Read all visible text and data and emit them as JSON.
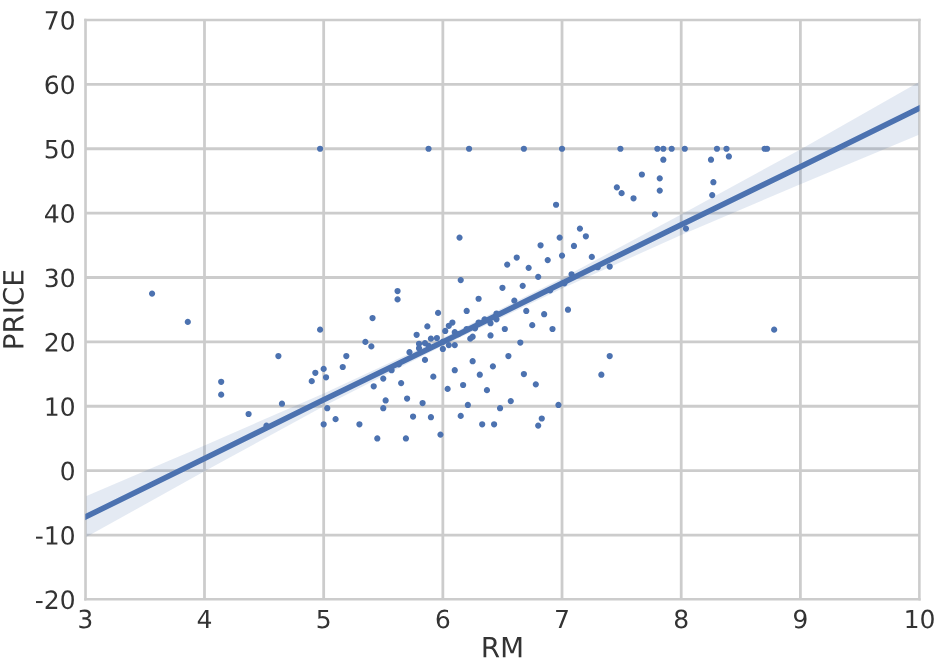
{
  "chart_data": {
    "type": "scatter",
    "xlabel": "RM",
    "ylabel": "PRICE",
    "xlim": [
      3,
      10
    ],
    "ylim": [
      -20,
      70
    ],
    "xticks": [
      3,
      4,
      5,
      6,
      7,
      8,
      9,
      10
    ],
    "yticks": [
      -20,
      -10,
      0,
      10,
      20,
      30,
      40,
      50,
      60,
      70
    ],
    "grid": true,
    "series": [
      {
        "type": "scatter",
        "color": "#4c72b0",
        "marker": "circle",
        "x": [
          3.56,
          3.86,
          4.14,
          4.14,
          4.37,
          4.52,
          4.62,
          4.65,
          4.97,
          4.9,
          4.93,
          5.0,
          5.02,
          5.0,
          5.03,
          5.1,
          5.16,
          5.19,
          5.3,
          5.35,
          5.4,
          5.41,
          5.42,
          5.45,
          5.5,
          5.5,
          5.52,
          5.57,
          5.62,
          5.62,
          5.63,
          5.65,
          5.69,
          5.7,
          5.72,
          5.75,
          5.78,
          5.8,
          5.83,
          5.85,
          5.87,
          5.88,
          5.9,
          5.92,
          5.95,
          5.96,
          5.98,
          6.0,
          6.02,
          6.04,
          6.05,
          6.08,
          6.1,
          6.13,
          6.14,
          6.15,
          6.15,
          6.17,
          6.2,
          6.21,
          6.23,
          6.25,
          6.27,
          6.3,
          6.31,
          6.33,
          6.35,
          6.37,
          6.4,
          6.42,
          6.43,
          6.45,
          6.48,
          6.5,
          6.52,
          6.54,
          6.55,
          6.57,
          6.6,
          6.62,
          6.65,
          6.67,
          6.68,
          6.7,
          6.72,
          6.75,
          6.78,
          6.8,
          6.8,
          6.82,
          6.83,
          6.85,
          6.88,
          6.9,
          6.92,
          6.95,
          6.97,
          6.98,
          7.0,
          7.02,
          7.05,
          7.08,
          7.1,
          7.15,
          7.2,
          7.25,
          7.3,
          7.33,
          7.4,
          7.4,
          7.46,
          7.5,
          7.6,
          7.67,
          7.78,
          7.82,
          7.82,
          7.85,
          8.04,
          8.25,
          8.26,
          8.27,
          8.4,
          8.78,
          4.97,
          5.88,
          6.22,
          6.68,
          7.0,
          7.49,
          7.8,
          7.85,
          7.92,
          8.03,
          8.3,
          8.38,
          8.72,
          8.7,
          5.8,
          5.9,
          6.0,
          6.1,
          6.2,
          6.3,
          6.4,
          6.45,
          6.1,
          5.85,
          6.05,
          6.25
        ],
        "values": [
          27.5,
          23.1,
          13.8,
          11.8,
          8.8,
          7.0,
          17.8,
          10.4,
          21.9,
          13.9,
          15.2,
          15.8,
          14.5,
          7.2,
          9.7,
          8.0,
          16.1,
          17.8,
          7.2,
          20.0,
          19.3,
          23.7,
          13.1,
          5.0,
          14.3,
          9.7,
          10.9,
          15.6,
          27.9,
          26.6,
          16.5,
          13.6,
          5.0,
          11.2,
          18.4,
          8.4,
          21.1,
          19.7,
          10.5,
          17.2,
          22.4,
          19.4,
          8.3,
          14.6,
          20.6,
          24.5,
          5.6,
          18.9,
          21.7,
          12.7,
          19.5,
          23.0,
          15.6,
          21.2,
          36.2,
          29.6,
          8.5,
          13.3,
          24.8,
          10.2,
          20.5,
          17.0,
          22.1,
          26.7,
          14.9,
          7.2,
          23.5,
          12.5,
          21.0,
          16.2,
          7.2,
          24.4,
          9.7,
          28.4,
          22.0,
          32.0,
          17.8,
          10.8,
          26.4,
          33.1,
          19.9,
          28.7,
          15.0,
          24.8,
          31.5,
          22.6,
          13.4,
          7.0,
          30.1,
          35.0,
          8.1,
          24.3,
          32.7,
          28.0,
          22.0,
          41.3,
          10.2,
          36.2,
          33.4,
          29.1,
          25.0,
          30.5,
          34.9,
          37.6,
          36.4,
          33.2,
          31.6,
          14.9,
          17.8,
          31.7,
          44.0,
          43.1,
          42.3,
          46.0,
          39.8,
          45.4,
          43.5,
          48.3,
          37.6,
          48.3,
          42.8,
          44.8,
          48.8,
          21.9,
          50,
          50,
          50,
          50,
          50,
          50,
          50,
          50,
          50,
          50,
          50,
          50,
          50,
          50,
          19.0,
          20.5,
          20.0,
          21.5,
          22.0,
          23.0,
          22.9,
          23.5,
          19.5,
          19.8,
          22.5,
          20.8
        ]
      },
      {
        "type": "line",
        "color": "#4c72b0",
        "marker": "none",
        "line_style": "solid",
        "x": [
          3,
          4,
          5,
          6,
          7,
          8,
          9,
          10
        ],
        "values": [
          -7.2,
          1.9,
          11.0,
          20.0,
          29.1,
          38.2,
          47.2,
          56.3
        ],
        "lower": [
          -10.4,
          -0.1,
          10.0,
          19.4,
          28.3,
          36.6,
          44.5,
          52.2
        ],
        "upper": [
          -4.0,
          3.9,
          12.0,
          20.6,
          29.9,
          39.8,
          49.9,
          60.4
        ]
      }
    ]
  }
}
